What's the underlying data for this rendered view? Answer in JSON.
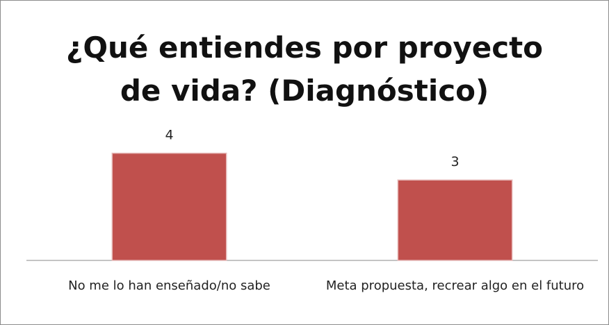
{
  "chart_data": {
    "type": "bar",
    "title": "¿Qué entiendes por proyecto de vida? (Diagnóstico)",
    "categories": [
      "No me lo han enseñado/no sabe",
      "Meta propuesta, recrear algo en el futuro"
    ],
    "values": [
      4,
      3
    ],
    "color": "#c0504d",
    "ylim": [
      0,
      5
    ]
  }
}
